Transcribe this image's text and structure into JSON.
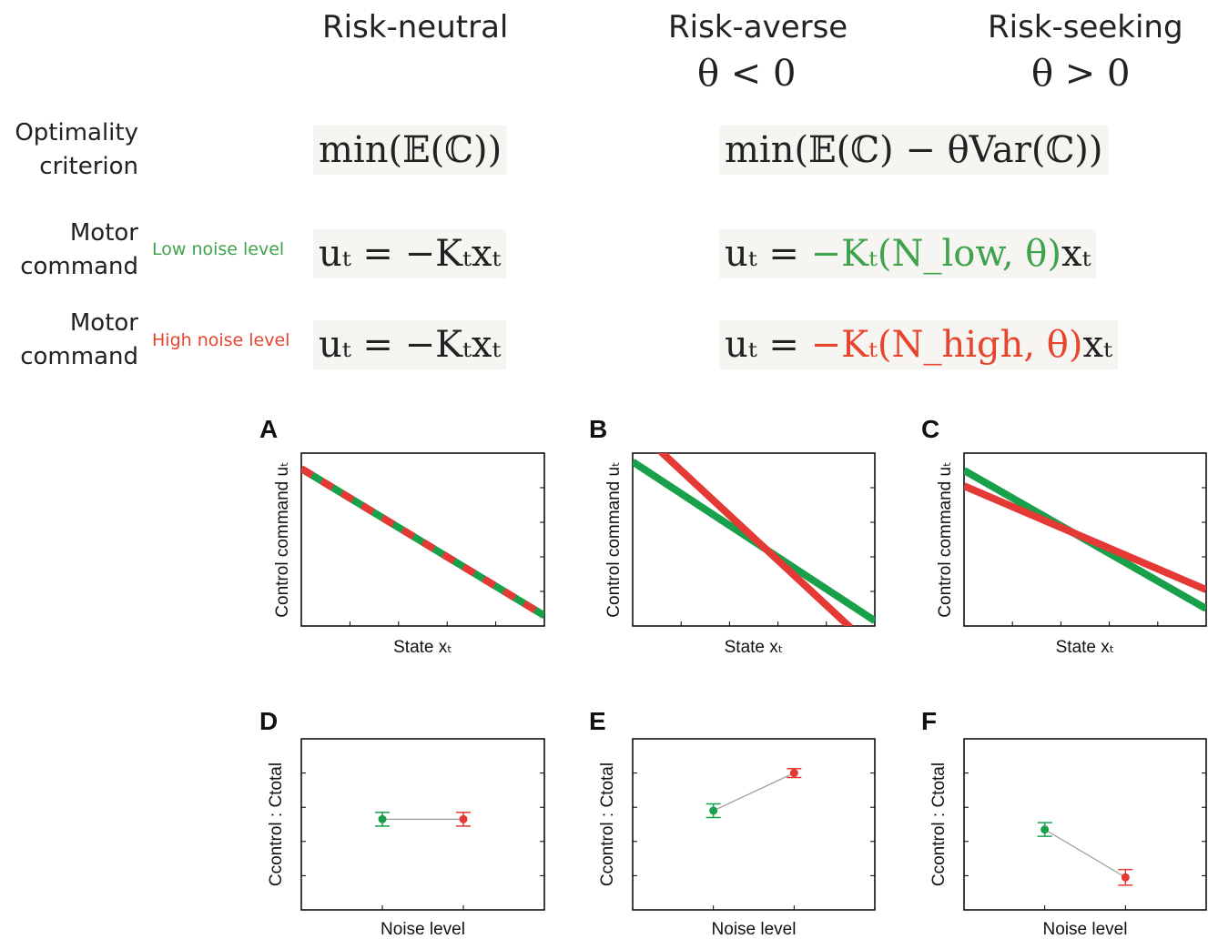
{
  "header": {
    "columns": [
      "Risk-neutral",
      "Risk-averse",
      "Risk-seeking"
    ],
    "theta_averse": "θ < 0",
    "theta_seeking": "θ > 0"
  },
  "rows": {
    "optimality": "Optimality criterion",
    "motor1": "Motor command",
    "motor2": "Motor command",
    "low_noise": "Low noise level",
    "high_noise": "High noise level"
  },
  "equations": {
    "neutral_criterion": "min(𝔼(ℂ))",
    "risk_criterion": "min(𝔼(ℂ) − θVar(ℂ))",
    "neutral_low": "uₜ = −Kₜxₜ",
    "neutral_high": "uₜ = −Kₜxₜ",
    "risk_low_prefix": "uₜ = ",
    "risk_low_colored": "−Kₜ(N_low, θ)",
    "risk_low_suffix": "xₜ",
    "risk_high_prefix": "uₜ = ",
    "risk_high_colored": "−Kₜ(N_high, θ)",
    "risk_high_suffix": "xₜ"
  },
  "colors": {
    "low": "#18a04a",
    "high": "#e53935",
    "connector": "#9a9a9a"
  },
  "chart_data": [
    {
      "panel": "A",
      "type": "line",
      "xlabel": "State xₜ",
      "ylabel": "Control command uₜ",
      "xlim": [
        0,
        1
      ],
      "ylim": [
        0,
        1
      ],
      "series": [
        {
          "style": "solid",
          "color": "green",
          "x": [
            0,
            1
          ],
          "y": [
            0.91,
            0.06
          ]
        },
        {
          "style": "dashed",
          "color": "red",
          "x": [
            0,
            1
          ],
          "y": [
            0.91,
            0.06
          ]
        }
      ]
    },
    {
      "panel": "B",
      "type": "line",
      "xlabel": "State xₜ",
      "ylabel": "Control command uₜ",
      "xlim": [
        0,
        1
      ],
      "ylim": [
        0,
        1
      ],
      "series": [
        {
          "color": "green",
          "x": [
            0,
            1
          ],
          "y": [
            0.95,
            0.03
          ]
        },
        {
          "color": "red",
          "x": [
            0.1,
            0.9
          ],
          "y": [
            1.03,
            -0.01
          ]
        }
      ]
    },
    {
      "panel": "C",
      "type": "line",
      "xlabel": "State xₜ",
      "ylabel": "Control command uₜ",
      "xlim": [
        0,
        1
      ],
      "ylim": [
        0,
        1
      ],
      "series": [
        {
          "color": "green",
          "x": [
            0,
            1
          ],
          "y": [
            0.9,
            0.1
          ]
        },
        {
          "color": "red",
          "x": [
            0,
            1
          ],
          "y": [
            0.81,
            0.21
          ]
        }
      ]
    },
    {
      "panel": "D",
      "type": "scatter",
      "xlabel": "Noise level",
      "ylabel": "Ccontrol : Ctotal",
      "xlim": [
        0,
        3
      ],
      "ylim": [
        0,
        5
      ],
      "points": [
        {
          "x": 1,
          "y": 2.65,
          "err": 0.2,
          "color": "green"
        },
        {
          "x": 2,
          "y": 2.65,
          "err": 0.2,
          "color": "red"
        }
      ]
    },
    {
      "panel": "E",
      "type": "scatter",
      "xlabel": "Noise level",
      "ylabel": "Ccontrol : Ctotal",
      "xlim": [
        0,
        3
      ],
      "ylim": [
        0,
        5
      ],
      "points": [
        {
          "x": 1,
          "y": 2.9,
          "err": 0.2,
          "color": "green"
        },
        {
          "x": 2,
          "y": 4.0,
          "err": 0.13,
          "color": "red"
        }
      ]
    },
    {
      "panel": "F",
      "type": "scatter",
      "xlabel": "Noise level",
      "ylabel": "Ccontrol : Ctotal",
      "xlim": [
        0,
        3
      ],
      "ylim": [
        0,
        5
      ],
      "points": [
        {
          "x": 1,
          "y": 2.35,
          "err": 0.2,
          "color": "green"
        },
        {
          "x": 2,
          "y": 0.95,
          "err": 0.23,
          "color": "red"
        }
      ]
    }
  ]
}
